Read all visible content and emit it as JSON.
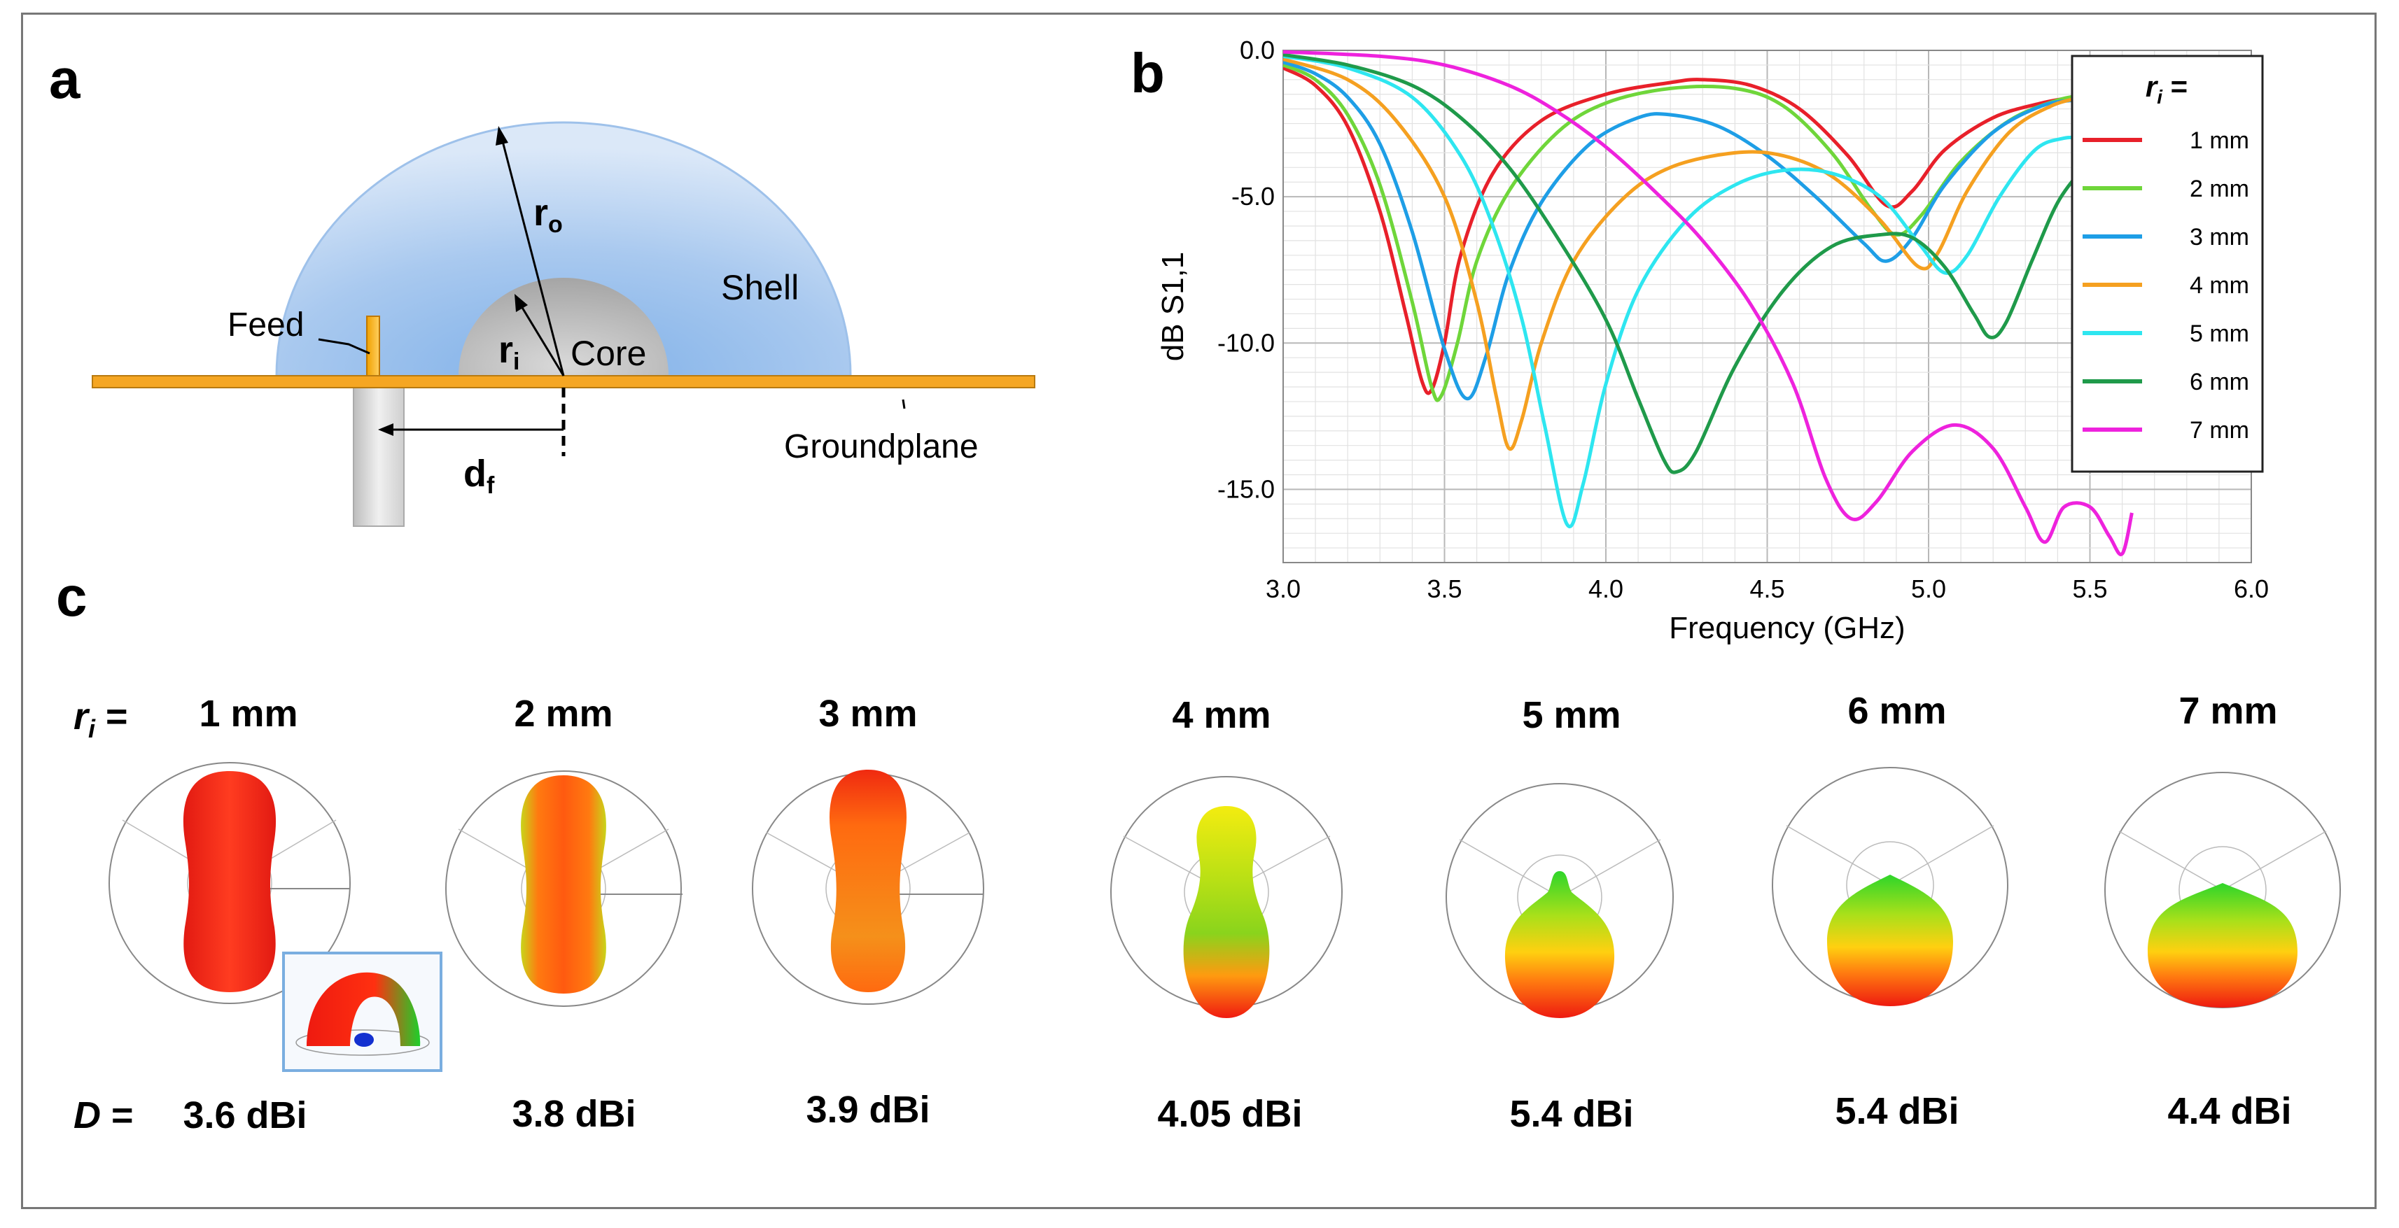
{
  "panels": {
    "a": "a",
    "b": "b",
    "c": "c"
  },
  "diagram_a": {
    "feed": "Feed",
    "shell": "Shell",
    "core": "Core",
    "groundplane": "Groundplane",
    "r_o": "r",
    "r_o_sub": "o",
    "r_i": "r",
    "r_i_sub": "i",
    "d_f": "d",
    "d_f_sub": "f"
  },
  "chart_data": {
    "type": "line",
    "title": "",
    "xlabel": "Frequency (GHz)",
    "ylabel": "dB S1,1",
    "xlim": [
      3.0,
      6.0
    ],
    "ylim": [
      -17.5,
      0.0
    ],
    "xticks": [
      "3.0",
      "3.5",
      "4.0",
      "4.5",
      "5.0",
      "5.5",
      "6.0"
    ],
    "yticks": [
      "0.0",
      "-5.0",
      "-10.0",
      "-15.0"
    ],
    "legend_title_r": "r",
    "legend_title_i": "i",
    "legend_title_eq": " =",
    "series": [
      {
        "name": "1 mm",
        "color": "#e8202a",
        "points": [
          [
            3.0,
            -0.6
          ],
          [
            3.1,
            -1.2
          ],
          [
            3.2,
            -2.6
          ],
          [
            3.3,
            -5.5
          ],
          [
            3.38,
            -9.0
          ],
          [
            3.43,
            -11.3
          ],
          [
            3.46,
            -11.6
          ],
          [
            3.5,
            -10.0
          ],
          [
            3.55,
            -7.0
          ],
          [
            3.65,
            -4.2
          ],
          [
            3.8,
            -2.4
          ],
          [
            4.0,
            -1.5
          ],
          [
            4.2,
            -1.1
          ],
          [
            4.3,
            -1.0
          ],
          [
            4.45,
            -1.2
          ],
          [
            4.6,
            -2.0
          ],
          [
            4.75,
            -3.6
          ],
          [
            4.87,
            -5.3
          ],
          [
            4.95,
            -4.8
          ],
          [
            5.05,
            -3.4
          ],
          [
            5.2,
            -2.3
          ],
          [
            5.35,
            -1.8
          ],
          [
            5.45,
            -1.6
          ]
        ]
      },
      {
        "name": "2 mm",
        "color": "#6fd63a",
        "points": [
          [
            3.0,
            -0.5
          ],
          [
            3.1,
            -1.0
          ],
          [
            3.2,
            -2.2
          ],
          [
            3.3,
            -4.6
          ],
          [
            3.4,
            -8.6
          ],
          [
            3.46,
            -11.5
          ],
          [
            3.49,
            -11.8
          ],
          [
            3.54,
            -10.0
          ],
          [
            3.6,
            -7.2
          ],
          [
            3.7,
            -4.8
          ],
          [
            3.85,
            -2.8
          ],
          [
            4.0,
            -1.8
          ],
          [
            4.2,
            -1.3
          ],
          [
            4.4,
            -1.3
          ],
          [
            4.55,
            -1.9
          ],
          [
            4.7,
            -3.5
          ],
          [
            4.82,
            -5.4
          ],
          [
            4.9,
            -6.3
          ],
          [
            4.98,
            -5.6
          ],
          [
            5.1,
            -3.8
          ],
          [
            5.25,
            -2.4
          ],
          [
            5.4,
            -1.7
          ],
          [
            5.5,
            -1.5
          ]
        ]
      },
      {
        "name": "3 mm",
        "color": "#1e9ee6",
        "points": [
          [
            3.0,
            -0.4
          ],
          [
            3.1,
            -0.8
          ],
          [
            3.2,
            -1.6
          ],
          [
            3.3,
            -3.2
          ],
          [
            3.4,
            -6.2
          ],
          [
            3.5,
            -10.2
          ],
          [
            3.57,
            -11.9
          ],
          [
            3.63,
            -10.4
          ],
          [
            3.7,
            -7.6
          ],
          [
            3.8,
            -5.2
          ],
          [
            3.95,
            -3.2
          ],
          [
            4.1,
            -2.3
          ],
          [
            4.2,
            -2.2
          ],
          [
            4.35,
            -2.6
          ],
          [
            4.5,
            -3.6
          ],
          [
            4.65,
            -5.0
          ],
          [
            4.8,
            -6.6
          ],
          [
            4.87,
            -7.2
          ],
          [
            4.95,
            -6.4
          ],
          [
            5.05,
            -4.6
          ],
          [
            5.2,
            -2.8
          ],
          [
            5.35,
            -1.9
          ],
          [
            5.45,
            -1.7
          ]
        ]
      },
      {
        "name": "4 mm",
        "color": "#f5a020",
        "points": [
          [
            3.0,
            -0.3
          ],
          [
            3.2,
            -1.0
          ],
          [
            3.35,
            -2.4
          ],
          [
            3.5,
            -5.0
          ],
          [
            3.6,
            -8.6
          ],
          [
            3.66,
            -11.8
          ],
          [
            3.7,
            -13.6
          ],
          [
            3.74,
            -12.6
          ],
          [
            3.8,
            -10.0
          ],
          [
            3.9,
            -7.2
          ],
          [
            4.05,
            -5.1
          ],
          [
            4.2,
            -4.0
          ],
          [
            4.4,
            -3.5
          ],
          [
            4.55,
            -3.6
          ],
          [
            4.7,
            -4.3
          ],
          [
            4.85,
            -5.8
          ],
          [
            4.97,
            -7.4
          ],
          [
            5.03,
            -6.9
          ],
          [
            5.12,
            -4.8
          ],
          [
            5.25,
            -2.8
          ],
          [
            5.38,
            -1.9
          ],
          [
            5.48,
            -1.6
          ]
        ]
      },
      {
        "name": "5 mm",
        "color": "#2ee6f0",
        "points": [
          [
            3.0,
            -0.2
          ],
          [
            3.2,
            -0.6
          ],
          [
            3.4,
            -1.6
          ],
          [
            3.55,
            -3.6
          ],
          [
            3.65,
            -6.0
          ],
          [
            3.74,
            -9.2
          ],
          [
            3.81,
            -12.8
          ],
          [
            3.88,
            -16.2
          ],
          [
            3.93,
            -14.8
          ],
          [
            4.0,
            -11.4
          ],
          [
            4.1,
            -8.2
          ],
          [
            4.25,
            -5.8
          ],
          [
            4.4,
            -4.6
          ],
          [
            4.55,
            -4.1
          ],
          [
            4.7,
            -4.2
          ],
          [
            4.85,
            -5.0
          ],
          [
            4.97,
            -6.6
          ],
          [
            5.05,
            -7.6
          ],
          [
            5.12,
            -7.0
          ],
          [
            5.22,
            -5.0
          ],
          [
            5.33,
            -3.4
          ],
          [
            5.42,
            -3.0
          ],
          [
            5.48,
            -3.0
          ]
        ]
      },
      {
        "name": "6 mm",
        "color": "#1f9a4a",
        "points": [
          [
            3.0,
            -0.15
          ],
          [
            3.2,
            -0.5
          ],
          [
            3.4,
            -1.2
          ],
          [
            3.55,
            -2.3
          ],
          [
            3.7,
            -4.0
          ],
          [
            3.85,
            -6.4
          ],
          [
            4.0,
            -9.2
          ],
          [
            4.1,
            -11.9
          ],
          [
            4.18,
            -14.0
          ],
          [
            4.22,
            -14.4
          ],
          [
            4.28,
            -13.7
          ],
          [
            4.4,
            -10.8
          ],
          [
            4.55,
            -8.2
          ],
          [
            4.7,
            -6.7
          ],
          [
            4.85,
            -6.3
          ],
          [
            4.95,
            -6.4
          ],
          [
            5.05,
            -7.4
          ],
          [
            5.14,
            -9.0
          ],
          [
            5.19,
            -9.8
          ],
          [
            5.24,
            -9.3
          ],
          [
            5.32,
            -7.2
          ],
          [
            5.4,
            -5.2
          ],
          [
            5.48,
            -4.0
          ]
        ]
      },
      {
        "name": "7 mm",
        "color": "#ee22dd",
        "points": [
          [
            3.0,
            -0.05
          ],
          [
            3.3,
            -0.2
          ],
          [
            3.5,
            -0.5
          ],
          [
            3.7,
            -1.2
          ],
          [
            3.85,
            -2.1
          ],
          [
            4.0,
            -3.3
          ],
          [
            4.15,
            -4.8
          ],
          [
            4.3,
            -6.5
          ],
          [
            4.45,
            -8.7
          ],
          [
            4.58,
            -11.4
          ],
          [
            4.68,
            -14.6
          ],
          [
            4.76,
            -16.0
          ],
          [
            4.84,
            -15.4
          ],
          [
            4.95,
            -13.7
          ],
          [
            5.08,
            -12.8
          ],
          [
            5.2,
            -13.6
          ],
          [
            5.3,
            -15.6
          ],
          [
            5.36,
            -16.8
          ],
          [
            5.42,
            -15.6
          ],
          [
            5.5,
            -15.6
          ],
          [
            5.56,
            -16.6
          ],
          [
            5.6,
            -17.2
          ],
          [
            5.63,
            -15.8
          ]
        ]
      }
    ]
  },
  "panel_c": {
    "r_label": "r",
    "r_sub": "i",
    "eq": " =",
    "d_label": "D",
    "radii": [
      "1 mm",
      "2 mm",
      "3 mm",
      "4 mm",
      "5 mm",
      "6 mm",
      "7 mm"
    ],
    "directivity": [
      "3.6 dBi",
      "3.8 dBi",
      "3.9 dBi",
      "4.05 dBi",
      "5.4 dBi",
      "5.4 dBi",
      "4.4 dBi"
    ]
  }
}
